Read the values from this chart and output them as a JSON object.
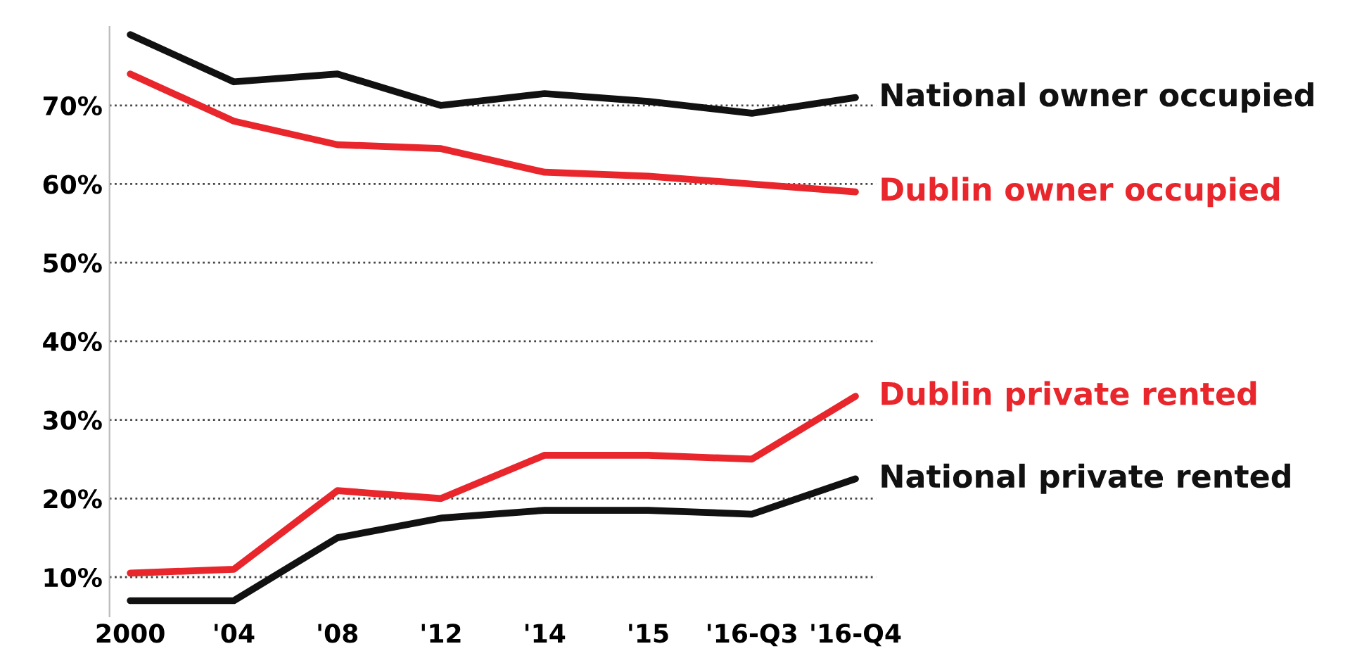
{
  "chart_data": {
    "type": "line",
    "categories": [
      "2000",
      "'04",
      "'08",
      "'12",
      "'14",
      "'15",
      "'16-Q3",
      "'16-Q4"
    ],
    "series": [
      {
        "name": "National owner occupied",
        "color": "#111111",
        "values": [
          79,
          73,
          74,
          70,
          71.5,
          70.5,
          69,
          71
        ]
      },
      {
        "name": "Dublin owner occupied",
        "color": "#e8262c",
        "values": [
          74,
          68,
          65,
          64.5,
          61.5,
          61,
          60,
          59
        ]
      },
      {
        "name": "Dublin private rented",
        "color": "#e8262c",
        "values": [
          10.5,
          11,
          21,
          20,
          25.5,
          25.5,
          25,
          33
        ]
      },
      {
        "name": "National private rented",
        "color": "#111111",
        "values": [
          7,
          7,
          15,
          17.5,
          18.5,
          18.5,
          18,
          22.5
        ]
      }
    ],
    "ylim": [
      5,
      80
    ],
    "yticks": [
      {
        "value": 10,
        "label": "10%"
      },
      {
        "value": 20,
        "label": "20%"
      },
      {
        "value": 30,
        "label": "30%"
      },
      {
        "value": 40,
        "label": "40%"
      },
      {
        "value": 50,
        "label": "50%"
      },
      {
        "value": 60,
        "label": "60%"
      },
      {
        "value": 70,
        "label": "70%"
      }
    ],
    "grid": "y",
    "legend": false,
    "marker": "none",
    "line_style": "solid"
  }
}
